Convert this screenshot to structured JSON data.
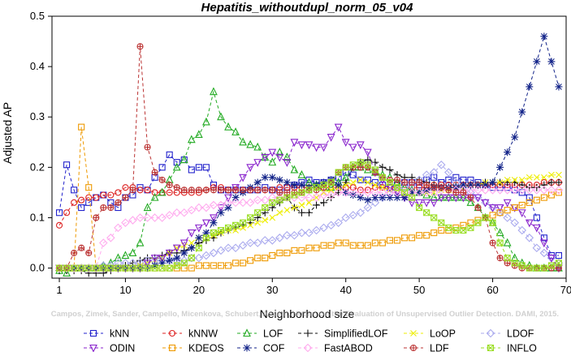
{
  "chart_data": {
    "type": "line",
    "title": "Hepatitis_withoutdupl_norm_05_v04",
    "xlabel": "Neighborhood size",
    "ylabel": "Adjusted AP",
    "xlim": [
      0,
      70
    ],
    "ylim": [
      -0.02,
      0.5
    ],
    "xticks": [
      1,
      10,
      20,
      30,
      40,
      50,
      60,
      70
    ],
    "yticks": [
      0.0,
      0.1,
      0.2,
      0.3,
      0.4,
      0.5
    ],
    "ytick_labels": [
      "0.0",
      "0.1",
      "0.2",
      "0.3",
      "0.4",
      "0.5"
    ],
    "grid": false,
    "legend_position": "bottom",
    "watermark": "Campos, Zimek, Sander, Campello, Micenkova, Schubert, Assent, Houle: On the Evaluation of Unsupervised Outlier Detection. DAMI, 2015.",
    "x": [
      1,
      2,
      3,
      4,
      5,
      6,
      7,
      8,
      9,
      10,
      11,
      12,
      13,
      14,
      15,
      16,
      17,
      18,
      19,
      20,
      21,
      22,
      23,
      24,
      25,
      26,
      27,
      28,
      29,
      30,
      31,
      32,
      33,
      34,
      35,
      36,
      37,
      38,
      39,
      40,
      41,
      42,
      43,
      44,
      45,
      46,
      47,
      48,
      49,
      50,
      51,
      52,
      53,
      54,
      55,
      56,
      57,
      58,
      59,
      60,
      61,
      62,
      63,
      64,
      65,
      66,
      67,
      68,
      69
    ],
    "series": [
      {
        "name": "kNN",
        "color": "#2222cc",
        "marker": "square",
        "values": [
          0.11,
          0.205,
          0.155,
          0.12,
          0.13,
          0.14,
          0.145,
          0.13,
          0.12,
          0.14,
          0.145,
          0.16,
          0.155,
          0.18,
          0.2,
          0.225,
          0.21,
          0.215,
          0.195,
          0.2,
          0.2,
          0.165,
          0.155,
          0.155,
          0.155,
          0.155,
          0.155,
          0.155,
          0.16,
          0.155,
          0.155,
          0.16,
          0.165,
          0.17,
          0.175,
          0.17,
          0.17,
          0.175,
          0.18,
          0.19,
          0.185,
          0.175,
          0.175,
          0.17,
          0.165,
          0.16,
          0.165,
          0.17,
          0.17,
          0.165,
          0.175,
          0.18,
          0.17,
          0.175,
          0.18,
          0.175,
          0.175,
          0.17,
          0.165,
          0.16,
          0.16,
          0.16,
          0.155,
          0.15,
          0.14,
          0.1,
          0.06,
          0.025,
          0.025
        ]
      },
      {
        "name": "kNNW",
        "color": "#dd2222",
        "marker": "circle",
        "values": [
          0.085,
          0.11,
          0.13,
          0.135,
          0.14,
          0.14,
          0.145,
          0.145,
          0.15,
          0.16,
          0.16,
          0.155,
          0.155,
          0.15,
          0.15,
          0.15,
          0.15,
          0.15,
          0.15,
          0.15,
          0.155,
          0.16,
          0.16,
          0.155,
          0.155,
          0.155,
          0.155,
          0.155,
          0.155,
          0.155,
          0.16,
          0.16,
          0.16,
          0.16,
          0.16,
          0.16,
          0.16,
          0.16,
          0.16,
          0.16,
          0.16,
          0.155,
          0.155,
          0.16,
          0.16,
          0.16,
          0.16,
          0.16,
          0.16,
          0.16,
          0.16,
          0.165,
          0.165,
          0.165,
          0.165,
          0.165,
          0.165,
          0.165,
          0.165,
          0.165,
          0.165,
          0.165,
          0.165,
          0.165,
          0.165,
          0.165,
          0.17,
          0.17,
          0.17
        ]
      },
      {
        "name": "LOF",
        "color": "#22aa22",
        "marker": "triangle-up",
        "values": [
          -0.005,
          -0.01,
          0.0,
          0.0,
          0.0,
          0.0,
          0.005,
          0.01,
          0.02,
          0.025,
          0.03,
          0.05,
          0.12,
          0.14,
          0.15,
          0.175,
          0.2,
          0.215,
          0.255,
          0.265,
          0.29,
          0.35,
          0.3,
          0.28,
          0.27,
          0.25,
          0.245,
          0.24,
          0.22,
          0.21,
          0.23,
          0.22,
          0.195,
          0.185,
          0.17,
          0.165,
          0.16,
          0.16,
          0.17,
          0.18,
          0.2,
          0.2,
          0.195,
          0.19,
          0.185,
          0.18,
          0.17,
          0.16,
          0.155,
          0.15,
          0.145,
          0.14,
          0.14,
          0.14,
          0.14,
          0.14,
          0.13,
          0.12,
          0.1,
          0.09,
          0.07,
          0.05,
          0.02,
          0.01,
          0.005,
          0.0,
          0.0,
          0.0,
          0.0
        ]
      },
      {
        "name": "SimplifiedLOF",
        "color": "#111111",
        "marker": "plus",
        "values": [
          -0.005,
          -0.005,
          -0.005,
          -0.005,
          -0.01,
          -0.01,
          -0.01,
          -0.005,
          0.0,
          0.005,
          0.01,
          0.015,
          0.02,
          0.02,
          0.025,
          0.03,
          0.03,
          0.035,
          0.04,
          0.05,
          0.055,
          0.06,
          0.07,
          0.075,
          0.08,
          0.085,
          0.09,
          0.1,
          0.11,
          0.12,
          0.13,
          0.14,
          0.12,
          0.11,
          0.11,
          0.125,
          0.13,
          0.14,
          0.15,
          0.17,
          0.2,
          0.21,
          0.215,
          0.21,
          0.2,
          0.195,
          0.185,
          0.18,
          0.18,
          0.175,
          0.17,
          0.165,
          0.16,
          0.16,
          0.165,
          0.16,
          0.165,
          0.165,
          0.17,
          0.17,
          0.17,
          0.17,
          0.17,
          0.165,
          0.16,
          0.16,
          0.165,
          0.17,
          0.17
        ]
      },
      {
        "name": "LoOP",
        "color": "#eeee00",
        "marker": "x",
        "values": [
          0.0,
          0.0,
          0.0,
          0.0,
          0.0,
          0.0,
          0.0,
          0.0,
          0.0,
          0.0,
          0.0,
          0.005,
          0.01,
          0.015,
          0.02,
          0.03,
          0.04,
          0.045,
          0.05,
          0.06,
          0.06,
          0.065,
          0.07,
          0.075,
          0.075,
          0.08,
          0.085,
          0.09,
          0.095,
          0.1,
          0.11,
          0.115,
          0.12,
          0.125,
          0.13,
          0.14,
          0.15,
          0.155,
          0.16,
          0.165,
          0.17,
          0.175,
          0.17,
          0.165,
          0.16,
          0.155,
          0.155,
          0.15,
          0.15,
          0.15,
          0.15,
          0.15,
          0.155,
          0.155,
          0.16,
          0.16,
          0.165,
          0.165,
          0.17,
          0.17,
          0.17,
          0.175,
          0.175,
          0.175,
          0.18,
          0.18,
          0.18,
          0.185,
          0.185
        ]
      },
      {
        "name": "LDOF",
        "color": "#aaaaee",
        "marker": "diamond",
        "values": [
          0.0,
          0.0,
          0.0,
          0.0,
          0.0,
          0.0,
          0.005,
          0.005,
          0.01,
          0.01,
          0.01,
          0.01,
          0.015,
          0.015,
          0.015,
          0.015,
          0.015,
          0.015,
          0.02,
          0.02,
          0.025,
          0.03,
          0.035,
          0.04,
          0.04,
          0.045,
          0.05,
          0.05,
          0.055,
          0.055,
          0.06,
          0.065,
          0.065,
          0.07,
          0.07,
          0.075,
          0.08,
          0.085,
          0.09,
          0.1,
          0.105,
          0.11,
          0.12,
          0.13,
          0.14,
          0.15,
          0.155,
          0.16,
          0.165,
          0.175,
          0.185,
          0.19,
          0.205,
          0.19,
          0.17,
          0.16,
          0.15,
          0.14,
          0.13,
          0.12,
          0.11,
          0.1,
          0.09,
          0.075,
          0.06,
          0.04,
          0.03,
          0.02,
          0.01
        ]
      },
      {
        "name": "ODIN",
        "color": "#8822cc",
        "marker": "triangle-down",
        "values": [
          0.0,
          0.0,
          0.0,
          0.0,
          0.0,
          0.0,
          0.0,
          0.0,
          0.0,
          0.0,
          0.0,
          0.0,
          0.01,
          0.02,
          0.02,
          0.03,
          0.04,
          0.05,
          0.07,
          0.08,
          0.09,
          0.1,
          0.12,
          0.14,
          0.16,
          0.18,
          0.2,
          0.21,
          0.22,
          0.23,
          0.22,
          0.21,
          0.25,
          0.245,
          0.245,
          0.24,
          0.24,
          0.26,
          0.28,
          0.25,
          0.24,
          0.245,
          0.23,
          0.19,
          0.175,
          0.16,
          0.15,
          0.14,
          0.13,
          0.13,
          0.13,
          0.13,
          0.14,
          0.14,
          0.14,
          0.14,
          0.14,
          0.14,
          0.13,
          0.12,
          0.12,
          0.13,
          0.12,
          0.11,
          0.09,
          0.08,
          0.05,
          0.02,
          0.0
        ]
      },
      {
        "name": "KDEOS",
        "color": "#ee9900",
        "marker": "square",
        "values": [
          0.0,
          0.0,
          0.0,
          0.28,
          0.16,
          0.0,
          0.0,
          0.0,
          0.0,
          0.0,
          0.0,
          0.0,
          0.0,
          0.0,
          0.0,
          0.0,
          0.0,
          0.0,
          0.0,
          0.005,
          0.005,
          0.005,
          0.005,
          0.005,
          0.01,
          0.01,
          0.015,
          0.02,
          0.02,
          0.025,
          0.03,
          0.03,
          0.035,
          0.035,
          0.04,
          0.04,
          0.045,
          0.045,
          0.05,
          0.05,
          0.045,
          0.045,
          0.045,
          0.05,
          0.05,
          0.055,
          0.055,
          0.06,
          0.06,
          0.065,
          0.065,
          0.07,
          0.075,
          0.075,
          0.08,
          0.085,
          0.09,
          0.095,
          0.1,
          0.105,
          0.11,
          0.115,
          0.12,
          0.125,
          0.13,
          0.135,
          0.14,
          0.145,
          0.15
        ]
      },
      {
        "name": "COF",
        "color": "#112288",
        "marker": "star",
        "values": [
          0.0,
          0.0,
          0.0,
          0.0,
          0.0,
          0.0,
          0.0,
          0.0,
          0.0,
          0.0,
          0.0,
          0.0,
          0.0,
          0.005,
          0.01,
          0.015,
          0.02,
          0.03,
          0.04,
          0.06,
          0.07,
          0.09,
          0.11,
          0.12,
          0.14,
          0.15,
          0.16,
          0.17,
          0.18,
          0.18,
          0.175,
          0.17,
          0.165,
          0.165,
          0.16,
          0.165,
          0.17,
          0.175,
          0.165,
          0.15,
          0.145,
          0.14,
          0.135,
          0.14,
          0.14,
          0.14,
          0.14,
          0.14,
          0.15,
          0.15,
          0.155,
          0.16,
          0.16,
          0.16,
          0.16,
          0.165,
          0.165,
          0.165,
          0.165,
          0.17,
          0.2,
          0.23,
          0.26,
          0.31,
          0.36,
          0.41,
          0.46,
          0.41,
          0.36
        ]
      },
      {
        "name": "FastABOD",
        "color": "#ffaaee",
        "marker": "diamond",
        "values": [
          0.0,
          0.0,
          0.0,
          0.0,
          0.0,
          0.0,
          0.05,
          0.06,
          0.08,
          0.09,
          0.095,
          0.1,
          0.1,
          0.1,
          0.1,
          0.105,
          0.11,
          0.11,
          0.115,
          0.12,
          0.12,
          0.125,
          0.125,
          0.13,
          0.13,
          0.13,
          0.13,
          0.135,
          0.135,
          0.14,
          0.14,
          0.14,
          0.14,
          0.14,
          0.14,
          0.14,
          0.145,
          0.145,
          0.15,
          0.15,
          0.15,
          0.15,
          0.15,
          0.15,
          0.15,
          0.15,
          0.15,
          0.15,
          0.15,
          0.15,
          0.15,
          0.15,
          0.155,
          0.155,
          0.155,
          0.155,
          0.155,
          0.155,
          0.155,
          0.155,
          0.155,
          0.155,
          0.155,
          0.155,
          0.155,
          0.155,
          0.155,
          0.155,
          0.155
        ]
      },
      {
        "name": "LDF",
        "color": "#bb3333",
        "marker": "circle-plus",
        "values": [
          0.0,
          0.0,
          0.03,
          0.04,
          0.03,
          0.1,
          0.12,
          0.12,
          0.13,
          0.14,
          0.155,
          0.44,
          0.24,
          0.19,
          0.175,
          0.165,
          0.16,
          0.155,
          0.155,
          0.155,
          0.155,
          0.155,
          0.155,
          0.155,
          0.155,
          0.155,
          0.155,
          0.155,
          0.155,
          0.155,
          0.15,
          0.15,
          0.15,
          0.15,
          0.155,
          0.155,
          0.16,
          0.17,
          0.19,
          0.2,
          0.2,
          0.2,
          0.2,
          0.19,
          0.18,
          0.175,
          0.175,
          0.17,
          0.17,
          0.17,
          0.165,
          0.16,
          0.16,
          0.155,
          0.15,
          0.15,
          0.14,
          0.12,
          0.1,
          0.05,
          0.02,
          0.01,
          0.005,
          0.0,
          0.0,
          0.0,
          0.0,
          0.0,
          0.0
        ]
      },
      {
        "name": "INFLO",
        "color": "#99dd22",
        "marker": "box-x",
        "values": [
          0.0,
          0.0,
          0.0,
          0.0,
          0.0,
          0.0,
          0.0,
          0.0,
          0.0,
          0.0,
          0.0,
          0.0,
          0.0,
          0.0,
          0.0,
          0.0,
          0.005,
          0.01,
          0.02,
          0.04,
          0.06,
          0.07,
          0.075,
          0.08,
          0.085,
          0.09,
          0.1,
          0.11,
          0.12,
          0.13,
          0.135,
          0.14,
          0.145,
          0.15,
          0.155,
          0.16,
          0.165,
          0.17,
          0.19,
          0.2,
          0.205,
          0.21,
          0.205,
          0.195,
          0.18,
          0.17,
          0.16,
          0.15,
          0.14,
          0.12,
          0.11,
          0.1,
          0.09,
          0.08,
          0.075,
          0.075,
          0.08,
          0.09,
          0.1,
          0.09,
          0.05,
          0.02,
          0.01,
          0.005,
          0.0,
          0.0,
          0.0,
          0.005,
          0.01
        ]
      }
    ]
  }
}
